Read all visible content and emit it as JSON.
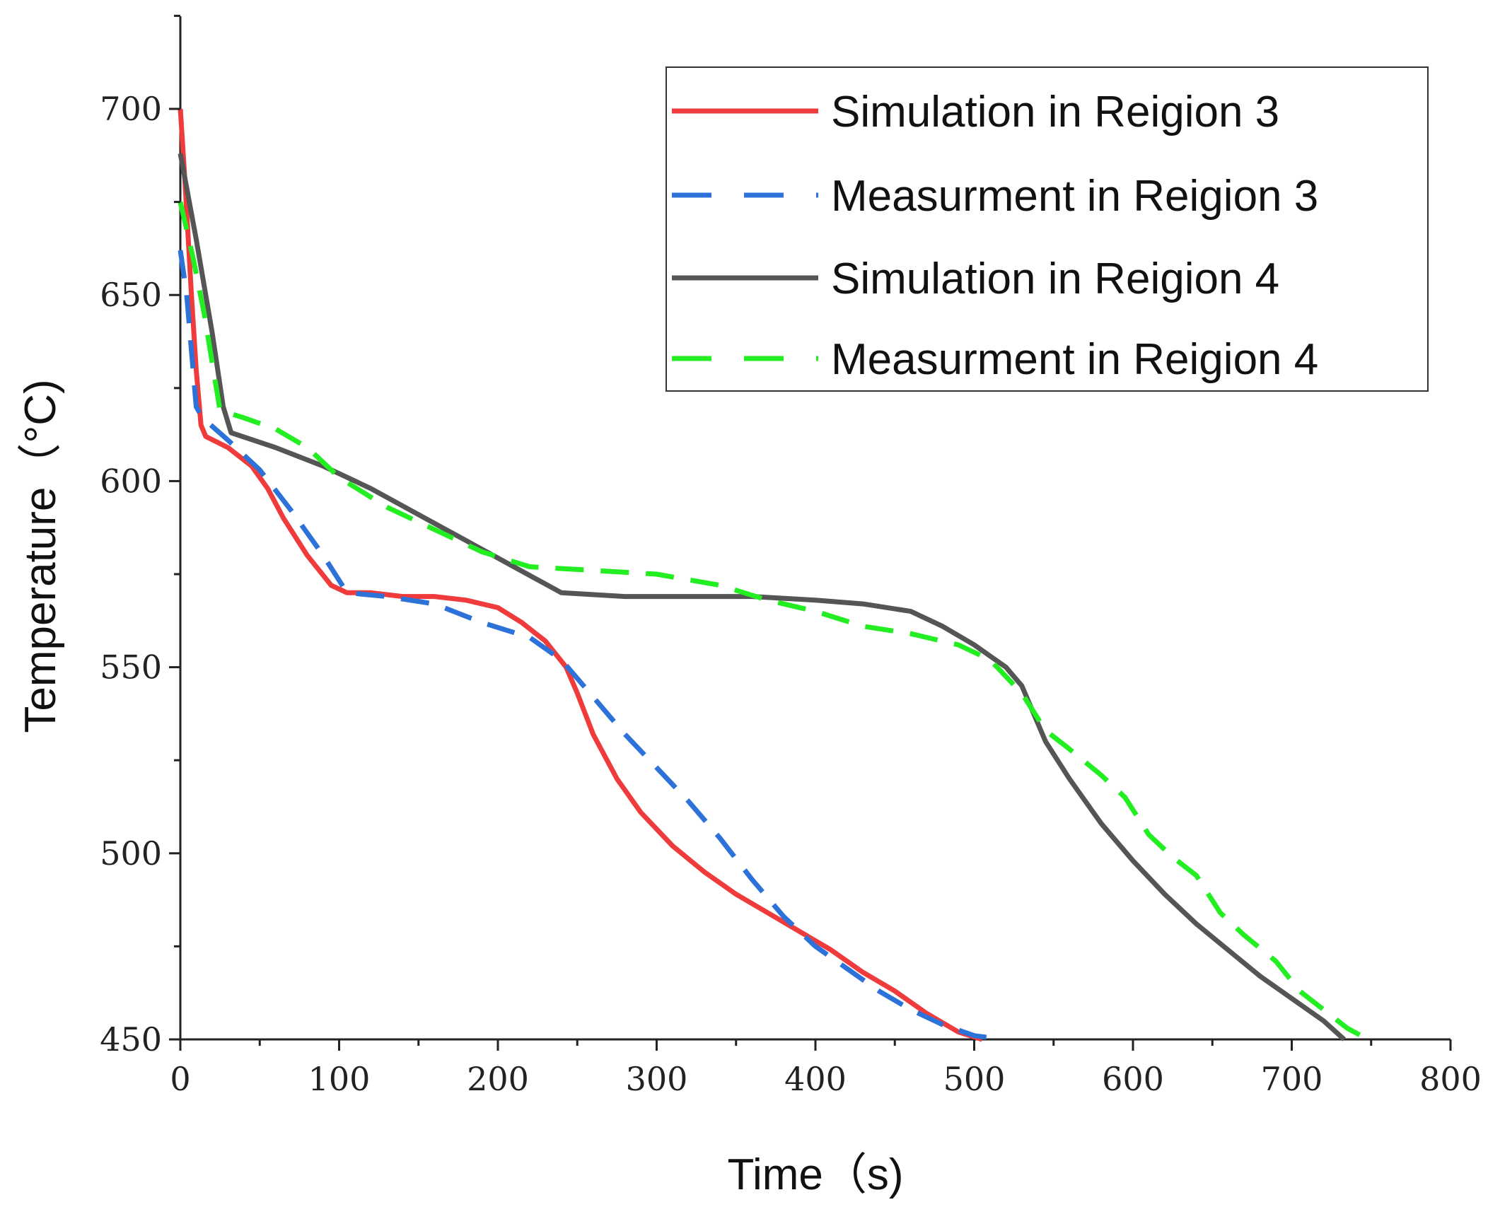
{
  "chart_data": {
    "type": "line",
    "title": "",
    "xlabel": "Time（s)",
    "ylabel": "Temperature（°C)",
    "xlim": [
      0,
      800
    ],
    "ylim": [
      450,
      725
    ],
    "xticks": [
      0,
      100,
      200,
      300,
      400,
      500,
      600,
      700,
      800
    ],
    "yticks": [
      450,
      500,
      550,
      600,
      650,
      700
    ],
    "grid": false,
    "legend_position": "top-right",
    "series": [
      {
        "name": "Simulation in Reigion 3",
        "color": "#ef3b3b",
        "style": "solid",
        "points": [
          [
            0,
            700
          ],
          [
            3,
            680
          ],
          [
            7,
            650
          ],
          [
            10,
            630
          ],
          [
            13,
            615
          ],
          [
            16,
            612
          ],
          [
            30,
            609
          ],
          [
            45,
            604
          ],
          [
            55,
            598
          ],
          [
            65,
            590
          ],
          [
            80,
            580
          ],
          [
            95,
            572
          ],
          [
            105,
            570
          ],
          [
            120,
            570
          ],
          [
            140,
            569
          ],
          [
            160,
            569
          ],
          [
            180,
            568
          ],
          [
            200,
            566
          ],
          [
            215,
            562
          ],
          [
            230,
            557
          ],
          [
            243,
            550
          ],
          [
            250,
            543
          ],
          [
            260,
            532
          ],
          [
            275,
            520
          ],
          [
            290,
            511
          ],
          [
            310,
            502
          ],
          [
            330,
            495
          ],
          [
            350,
            489
          ],
          [
            370,
            484
          ],
          [
            390,
            479
          ],
          [
            410,
            474
          ],
          [
            430,
            468
          ],
          [
            450,
            463
          ],
          [
            470,
            457
          ],
          [
            490,
            452
          ],
          [
            505,
            450
          ]
        ]
      },
      {
        "name": "Measurment in Reigion 3",
        "color": "#2d72d9",
        "style": "dashed",
        "points": [
          [
            0,
            662
          ],
          [
            4,
            650
          ],
          [
            7,
            635
          ],
          [
            10,
            620
          ],
          [
            14,
            617
          ],
          [
            30,
            611
          ],
          [
            50,
            603
          ],
          [
            70,
            592
          ],
          [
            90,
            580
          ],
          [
            105,
            570
          ],
          [
            130,
            569
          ],
          [
            160,
            567
          ],
          [
            190,
            562
          ],
          [
            220,
            558
          ],
          [
            240,
            552
          ],
          [
            260,
            542
          ],
          [
            280,
            532
          ],
          [
            300,
            523
          ],
          [
            320,
            514
          ],
          [
            340,
            504
          ],
          [
            360,
            493
          ],
          [
            380,
            483
          ],
          [
            400,
            475
          ],
          [
            420,
            469
          ],
          [
            440,
            463
          ],
          [
            460,
            458
          ],
          [
            480,
            454
          ],
          [
            500,
            451
          ],
          [
            518,
            450
          ]
        ]
      },
      {
        "name": "Simulation in Reigion 4",
        "color": "#555555",
        "style": "solid",
        "points": [
          [
            0,
            688
          ],
          [
            10,
            665
          ],
          [
            20,
            640
          ],
          [
            27,
            620
          ],
          [
            32,
            613
          ],
          [
            60,
            609
          ],
          [
            90,
            604
          ],
          [
            120,
            598
          ],
          [
            150,
            591
          ],
          [
            180,
            584
          ],
          [
            210,
            577
          ],
          [
            240,
            570
          ],
          [
            280,
            569
          ],
          [
            320,
            569
          ],
          [
            360,
            569
          ],
          [
            400,
            568
          ],
          [
            430,
            567
          ],
          [
            460,
            565
          ],
          [
            480,
            561
          ],
          [
            500,
            556
          ],
          [
            520,
            550
          ],
          [
            530,
            545
          ],
          [
            545,
            530
          ],
          [
            560,
            520
          ],
          [
            580,
            508
          ],
          [
            600,
            498
          ],
          [
            620,
            489
          ],
          [
            640,
            481
          ],
          [
            660,
            474
          ],
          [
            680,
            467
          ],
          [
            700,
            461
          ],
          [
            720,
            455
          ],
          [
            733,
            450
          ]
        ]
      },
      {
        "name": "Measurment in Reigion 4",
        "color": "#22ee22",
        "style": "dashed",
        "points": [
          [
            0,
            675
          ],
          [
            8,
            660
          ],
          [
            15,
            645
          ],
          [
            20,
            632
          ],
          [
            25,
            619
          ],
          [
            40,
            617
          ],
          [
            60,
            614
          ],
          [
            80,
            609
          ],
          [
            100,
            601
          ],
          [
            130,
            593
          ],
          [
            160,
            587
          ],
          [
            190,
            581
          ],
          [
            220,
            577
          ],
          [
            260,
            576
          ],
          [
            300,
            575
          ],
          [
            340,
            572
          ],
          [
            370,
            568
          ],
          [
            400,
            565
          ],
          [
            430,
            561
          ],
          [
            460,
            559
          ],
          [
            490,
            556
          ],
          [
            510,
            552
          ],
          [
            530,
            543
          ],
          [
            545,
            533
          ],
          [
            560,
            528
          ],
          [
            580,
            521
          ],
          [
            595,
            515
          ],
          [
            610,
            505
          ],
          [
            625,
            499
          ],
          [
            640,
            494
          ],
          [
            655,
            484
          ],
          [
            670,
            478
          ],
          [
            690,
            471
          ],
          [
            705,
            463
          ],
          [
            720,
            458
          ],
          [
            735,
            453
          ],
          [
            748,
            450
          ]
        ]
      }
    ]
  }
}
